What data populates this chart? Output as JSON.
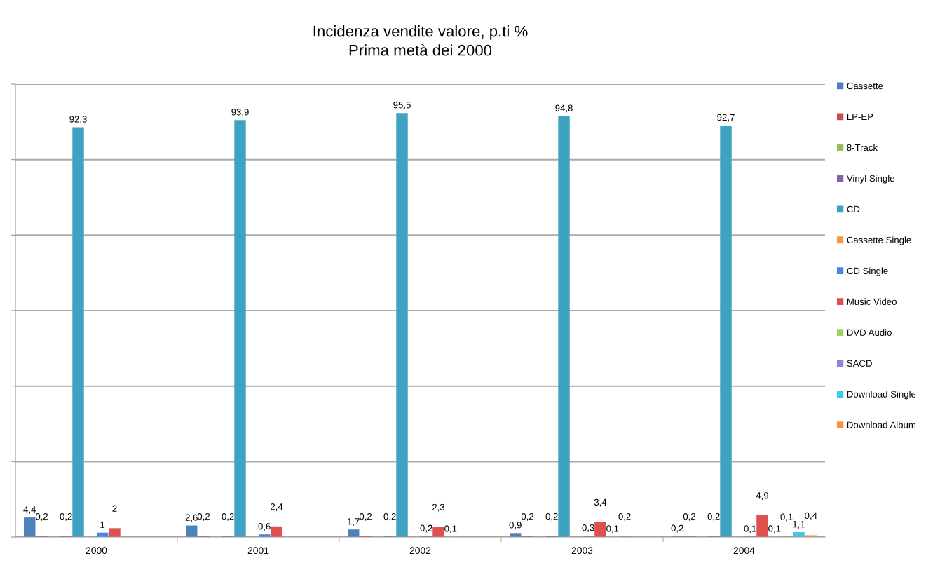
{
  "chart_data": {
    "type": "bar",
    "title": "Incidenza vendite valore, p.ti %\nPrima metà dei 2000",
    "categories": [
      "2000",
      "2001",
      "2002",
      "2003",
      "2004"
    ],
    "series": [
      {
        "name": "Cassette",
        "color": "#4f81bd",
        "values": [
          4.4,
          2.6,
          1.7,
          0.9,
          0.2
        ],
        "value_labels": [
          "4,4",
          "2,6",
          "1,7",
          "0,9",
          "0,2"
        ]
      },
      {
        "name": "LP-EP",
        "color": "#c0504d",
        "values": [
          0.2,
          0.2,
          0.2,
          0.2,
          0.2
        ],
        "value_labels": [
          "0,2",
          "0,2",
          "0,2",
          "0,2",
          "0,2"
        ]
      },
      {
        "name": "8-Track",
        "color": "#9bbb59",
        "values": [
          null,
          null,
          null,
          null,
          null
        ]
      },
      {
        "name": "Vinyl Single",
        "color": "#8064a2",
        "values": [
          0.2,
          0.2,
          0.2,
          0.2,
          0.2
        ],
        "value_labels": [
          "0,2",
          "0,2",
          "0,2",
          "0,2",
          "0,2"
        ]
      },
      {
        "name": "CD",
        "color": "#3ea3c2",
        "values": [
          92.3,
          93.9,
          95.5,
          94.8,
          92.7
        ],
        "value_labels": [
          "92,3",
          "93,9",
          "95,5",
          "94,8",
          "92,7"
        ]
      },
      {
        "name": "Cassette Single",
        "color": "#f79646",
        "values": [
          null,
          null,
          null,
          null,
          null
        ]
      },
      {
        "name": "CD Single",
        "color": "#4a86e0",
        "values": [
          1,
          0.6,
          0.2,
          0.3,
          0.1
        ],
        "value_labels": [
          "1",
          "0,6",
          "0,2",
          "0,3",
          "0,1"
        ]
      },
      {
        "name": "Music Video",
        "color": "#e0504f",
        "values": [
          2,
          2.4,
          2.3,
          3.4,
          4.9
        ],
        "value_labels": [
          "2",
          "2,4",
          "2,3",
          "3,4",
          "4,9"
        ]
      },
      {
        "name": "DVD Audio",
        "color": "#9ed35a",
        "values": [
          null,
          null,
          0.1,
          0.1,
          0.1
        ],
        "value_labels": [
          null,
          null,
          "0,1",
          "0,1",
          "0,1"
        ]
      },
      {
        "name": "SACD",
        "color": "#9b7fd6",
        "values": [
          null,
          null,
          null,
          0.2,
          0.1
        ],
        "value_labels": [
          null,
          null,
          null,
          "0,2",
          "0,1"
        ]
      },
      {
        "name": "Download Single",
        "color": "#42c8e6",
        "values": [
          null,
          null,
          null,
          null,
          1.1
        ],
        "value_labels": [
          null,
          null,
          null,
          null,
          "1,1"
        ]
      },
      {
        "name": "Download Album",
        "color": "#f7943a",
        "values": [
          null,
          null,
          null,
          null,
          0.4
        ],
        "value_labels": [
          null,
          null,
          null,
          null,
          "0,4"
        ]
      }
    ],
    "ylim": [
      0,
      102
    ],
    "yticks": [
      {
        "value": 0,
        "label": null
      },
      {
        "value": 17,
        "label": null
      },
      {
        "value": 34,
        "label": null
      },
      {
        "value": 51,
        "label": null
      },
      {
        "value": 68,
        "label": null
      },
      {
        "value": 85,
        "label": null
      },
      {
        "value": 102,
        "label": null
      }
    ],
    "grid": "y",
    "legend": "right"
  }
}
